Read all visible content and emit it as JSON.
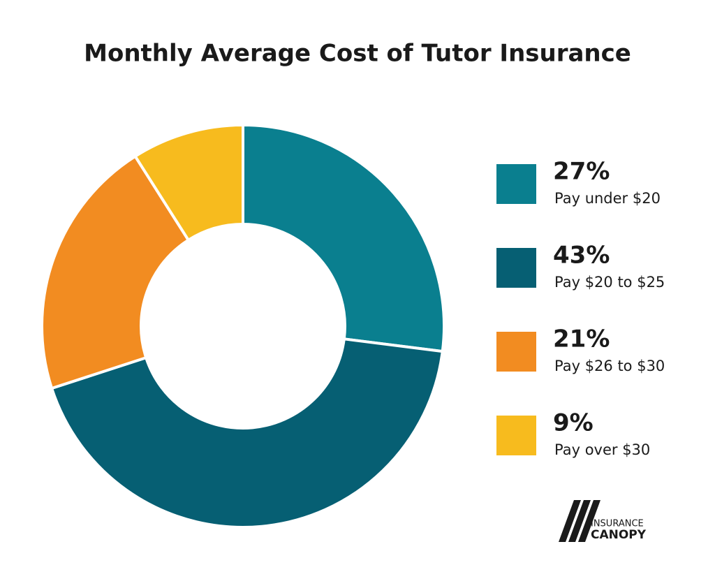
{
  "chart_data": {
    "type": "donut",
    "title": "Monthly Average Cost of Tutor Insurance",
    "categories": [
      "Pay under $20",
      "Pay $20 to $25",
      "Pay $26 to $30",
      "Pay over $30"
    ],
    "values": [
      27,
      43,
      21,
      9
    ],
    "value_labels": [
      "27%",
      "43%",
      "21%",
      "9%"
    ],
    "colors": [
      "#0a7f8f",
      "#065f73",
      "#f28c21",
      "#f7bb1e"
    ],
    "legend": "right"
  },
  "logo": {
    "line1": "INSURANCE",
    "line2": "CANOPY"
  }
}
